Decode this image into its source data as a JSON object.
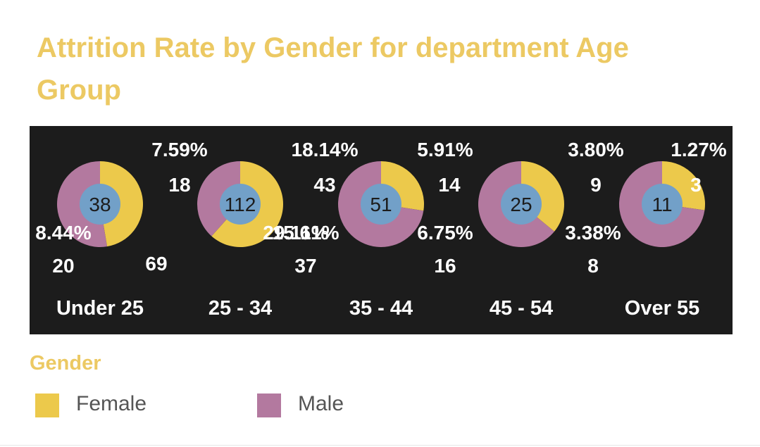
{
  "chart_data": {
    "type": "pie",
    "title": "Attrition Rate by Gender for department Age Group",
    "legend_title": "Gender",
    "legend_position": "bottom",
    "series": [
      {
        "name": "Female",
        "color": "#ecc94b"
      },
      {
        "name": "Male",
        "color": "#b3799f"
      }
    ],
    "center_color": "#72a0c8",
    "groups": [
      {
        "category": "Under 25",
        "total": "38",
        "female": {
          "pct": "7.59%",
          "count": "18",
          "value": 18
        },
        "male": {
          "pct": "8.44%",
          "count": "20",
          "value": 20
        }
      },
      {
        "category": "25 - 34",
        "total": "112",
        "female": {
          "pct": "29.11%",
          "count": "69",
          "value": 69
        },
        "male": {
          "pct": "18.14%",
          "count": "43",
          "value": 43
        }
      },
      {
        "category": "35 - 44",
        "total": "51",
        "female": {
          "pct": "5.91%",
          "count": "14",
          "value": 14
        },
        "male": {
          "pct": "15.61%",
          "count": "37",
          "value": 37
        }
      },
      {
        "category": "45 - 54",
        "total": "25",
        "female": {
          "pct": "3.80%",
          "count": "9",
          "value": 9
        },
        "male": {
          "pct": "6.75%",
          "count": "16",
          "value": 16
        }
      },
      {
        "category": "Over 55",
        "total": "11",
        "female": {
          "pct": "1.27%",
          "count": "3",
          "value": 3
        },
        "male": {
          "pct": "3.38%",
          "count": "8",
          "value": 8
        }
      }
    ]
  }
}
